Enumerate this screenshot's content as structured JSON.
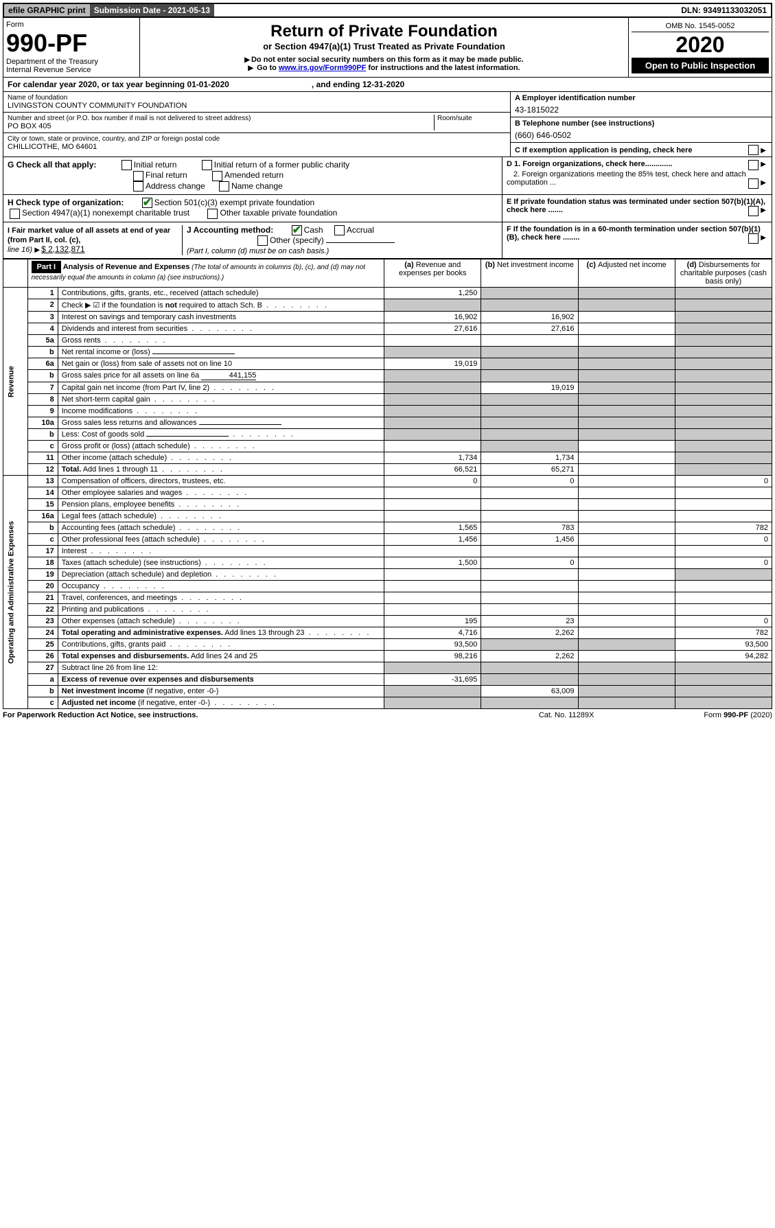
{
  "top": {
    "efile": "efile GRAPHIC print",
    "subdate_label": "Submission Date - 2021-05-13",
    "dln": "DLN: 93491133032051"
  },
  "header": {
    "form_word": "Form",
    "form_num_prefix": "990-PF",
    "dept": "Department of the Treasury",
    "irs": "Internal Revenue Service",
    "title": "Return of Private Foundation",
    "subtitle": "or Section 4947(a)(1) Trust Treated as Private Foundation",
    "warn1": "Do not enter social security numbers on this form as it may be made public.",
    "warn2a": "Go to ",
    "warn2link": "www.irs.gov/Form990PF",
    "warn2b": " for instructions and the latest information.",
    "omb": "OMB No. 1545-0052",
    "year": "2020",
    "open": "Open to Public Inspection"
  },
  "calyear": {
    "a": "For calendar year 2020, or tax year beginning 01-01-2020",
    "b": ", and ending 12-31-2020"
  },
  "info": {
    "name_lab": "Name of foundation",
    "name": "LIVINGSTON COUNTY COMMUNITY FOUNDATION",
    "addr_lab": "Number and street (or P.O. box number if mail is not delivered to street address)",
    "room_lab": "Room/suite",
    "addr": "PO BOX 405",
    "city_lab": "City or town, state or province, country, and ZIP or foreign postal code",
    "city": "CHILLICOTHE, MO  64601",
    "a_lab": "A Employer identification number",
    "ein": "43-1815022",
    "b_lab": "B Telephone number (see instructions)",
    "phone": "(660) 646-0502",
    "c_lab": "C If exemption application is pending, check here"
  },
  "g": {
    "label": "G Check all that apply:",
    "opts": [
      "Initial return",
      "Initial return of a former public charity",
      "Final return",
      "Amended return",
      "Address change",
      "Name change"
    ]
  },
  "h": {
    "label": "H Check type of organization:",
    "o1": "Section 501(c)(3) exempt private foundation",
    "o2": "Section 4947(a)(1) nonexempt charitable trust",
    "o3": "Other taxable private foundation"
  },
  "i": {
    "label": "I Fair market value of all assets at end of year (from Part II, col. (c),",
    "line": "line 16)",
    "val": "$  2,132,871"
  },
  "j": {
    "label": "J Accounting method:",
    "cash": "Cash",
    "accrual": "Accrual",
    "other": "Other (specify)",
    "note": "(Part I, column (d) must be on cash basis.)"
  },
  "d": {
    "d1": "D 1. Foreign organizations, check here.............",
    "d2": "2. Foreign organizations meeting the 85% test, check here and attach computation ...",
    "e": "E  If private foundation status was terminated under section 507(b)(1)(A), check here .......",
    "f": "F  If the foundation is in a 60-month termination under section 507(b)(1)(B), check here ........"
  },
  "part1": {
    "label": "Part I",
    "title": "Analysis of Revenue and Expenses",
    "title_sub": " (The total of amounts in columns (b), (c), and (d) may not necessarily equal the amounts in column (a) (see instructions).)",
    "cols": {
      "a": "(a)",
      "at": "Revenue and expenses per books",
      "b": "(b)",
      "bt": "Net investment income",
      "c": "(c)",
      "ct": "Adjusted net income",
      "d": "(d)",
      "dt": "Disbursements for charitable purposes (cash basis only)"
    }
  },
  "side": {
    "rev": "Revenue",
    "exp": "Operating and Administrative Expenses"
  },
  "rows": [
    {
      "n": "1",
      "d": "Contributions, gifts, grants, etc., received (attach schedule)",
      "a": "1,250",
      "grey_bcd": true
    },
    {
      "n": "2",
      "d": "Check ▶ ☑ if the foundation is <b>not</b> required to attach Sch. B",
      "dots": true,
      "grey_all": true
    },
    {
      "n": "3",
      "d": "Interest on savings and temporary cash investments",
      "a": "16,902",
      "b": "16,902",
      "grey_d": true
    },
    {
      "n": "4",
      "d": "Dividends and interest from securities",
      "dots": true,
      "a": "27,616",
      "b": "27,616",
      "grey_d": true
    },
    {
      "n": "5a",
      "d": "Gross rents",
      "dots": true,
      "grey_d": true
    },
    {
      "n": "b",
      "d": "Net rental income or (loss)",
      "underline": true,
      "grey_all": true
    },
    {
      "n": "6a",
      "d": "Net gain or (loss) from sale of assets not on line 10",
      "a": "19,019",
      "grey_bcd": true
    },
    {
      "n": "b",
      "d": "Gross sales price for all assets on line 6a",
      "inline_val": "441,155",
      "grey_all": true
    },
    {
      "n": "7",
      "d": "Capital gain net income (from Part IV, line 2)",
      "dots": true,
      "grey_a": true,
      "b": "19,019",
      "grey_cd": true
    },
    {
      "n": "8",
      "d": "Net short-term capital gain",
      "dots": true,
      "grey_abd": true
    },
    {
      "n": "9",
      "d": "Income modifications",
      "dots": true,
      "grey_abd": true
    },
    {
      "n": "10a",
      "d": "Gross sales less returns and allowances",
      "underline": true,
      "grey_all": true
    },
    {
      "n": "b",
      "d": "Less: Cost of goods sold",
      "dots": true,
      "underline": true,
      "grey_all": true
    },
    {
      "n": "c",
      "d": "Gross profit or (loss) (attach schedule)",
      "dots": true,
      "grey_bd": true
    },
    {
      "n": "11",
      "d": "Other income (attach schedule)",
      "dots": true,
      "a": "1,734",
      "b": "1,734",
      "grey_d": true
    },
    {
      "n": "12",
      "d": "<b>Total.</b> Add lines 1 through 11",
      "dots": true,
      "a": "66,521",
      "b": "65,271",
      "grey_d": true
    }
  ],
  "exp_rows": [
    {
      "n": "13",
      "d": "Compensation of officers, directors, trustees, etc.",
      "a": "0",
      "b": "0",
      "dd": "0"
    },
    {
      "n": "14",
      "d": "Other employee salaries and wages",
      "dots": true
    },
    {
      "n": "15",
      "d": "Pension plans, employee benefits",
      "dots": true
    },
    {
      "n": "16a",
      "d": "Legal fees (attach schedule)",
      "dots": true
    },
    {
      "n": "b",
      "d": "Accounting fees (attach schedule)",
      "dots": true,
      "a": "1,565",
      "b": "783",
      "dd": "782"
    },
    {
      "n": "c",
      "d": "Other professional fees (attach schedule)",
      "dots": true,
      "a": "1,456",
      "b": "1,456",
      "dd": "0"
    },
    {
      "n": "17",
      "d": "Interest",
      "dots": true
    },
    {
      "n": "18",
      "d": "Taxes (attach schedule) (see instructions)",
      "dots": true,
      "a": "1,500",
      "b": "0",
      "dd": "0"
    },
    {
      "n": "19",
      "d": "Depreciation (attach schedule) and depletion",
      "dots": true,
      "grey_d": true
    },
    {
      "n": "20",
      "d": "Occupancy",
      "dots": true
    },
    {
      "n": "21",
      "d": "Travel, conferences, and meetings",
      "dots": true
    },
    {
      "n": "22",
      "d": "Printing and publications",
      "dots": true
    },
    {
      "n": "23",
      "d": "Other expenses (attach schedule)",
      "dots": true,
      "a": "195",
      "b": "23",
      "dd": "0"
    },
    {
      "n": "24",
      "d": "<b>Total operating and administrative expenses.</b> Add lines 13 through 23",
      "dots": true,
      "a": "4,716",
      "b": "2,262",
      "dd": "782"
    },
    {
      "n": "25",
      "d": "Contributions, gifts, grants paid",
      "dots": true,
      "a": "93,500",
      "grey_bc": true,
      "dd": "93,500"
    },
    {
      "n": "26",
      "d": "<b>Total expenses and disbursements.</b> Add lines 24 and 25",
      "a": "98,216",
      "b": "2,262",
      "dd": "94,282"
    },
    {
      "n": "27",
      "d": "Subtract line 26 from line 12:",
      "grey_all": true
    },
    {
      "n": "a",
      "d": "<b>Excess of revenue over expenses and disbursements</b>",
      "a": "-31,695",
      "grey_bcd": true
    },
    {
      "n": "b",
      "d": "<b>Net investment income</b> (if negative, enter -0-)",
      "grey_a": true,
      "b": "63,009",
      "grey_cd": true
    },
    {
      "n": "c",
      "d": "<b>Adjusted net income</b> (if negative, enter -0-)",
      "dots": true,
      "grey_abd": true
    }
  ],
  "footer": {
    "a": "For Paperwork Reduction Act Notice, see instructions.",
    "b": "Cat. No. 11289X",
    "c": "Form 990-PF (2020)"
  }
}
